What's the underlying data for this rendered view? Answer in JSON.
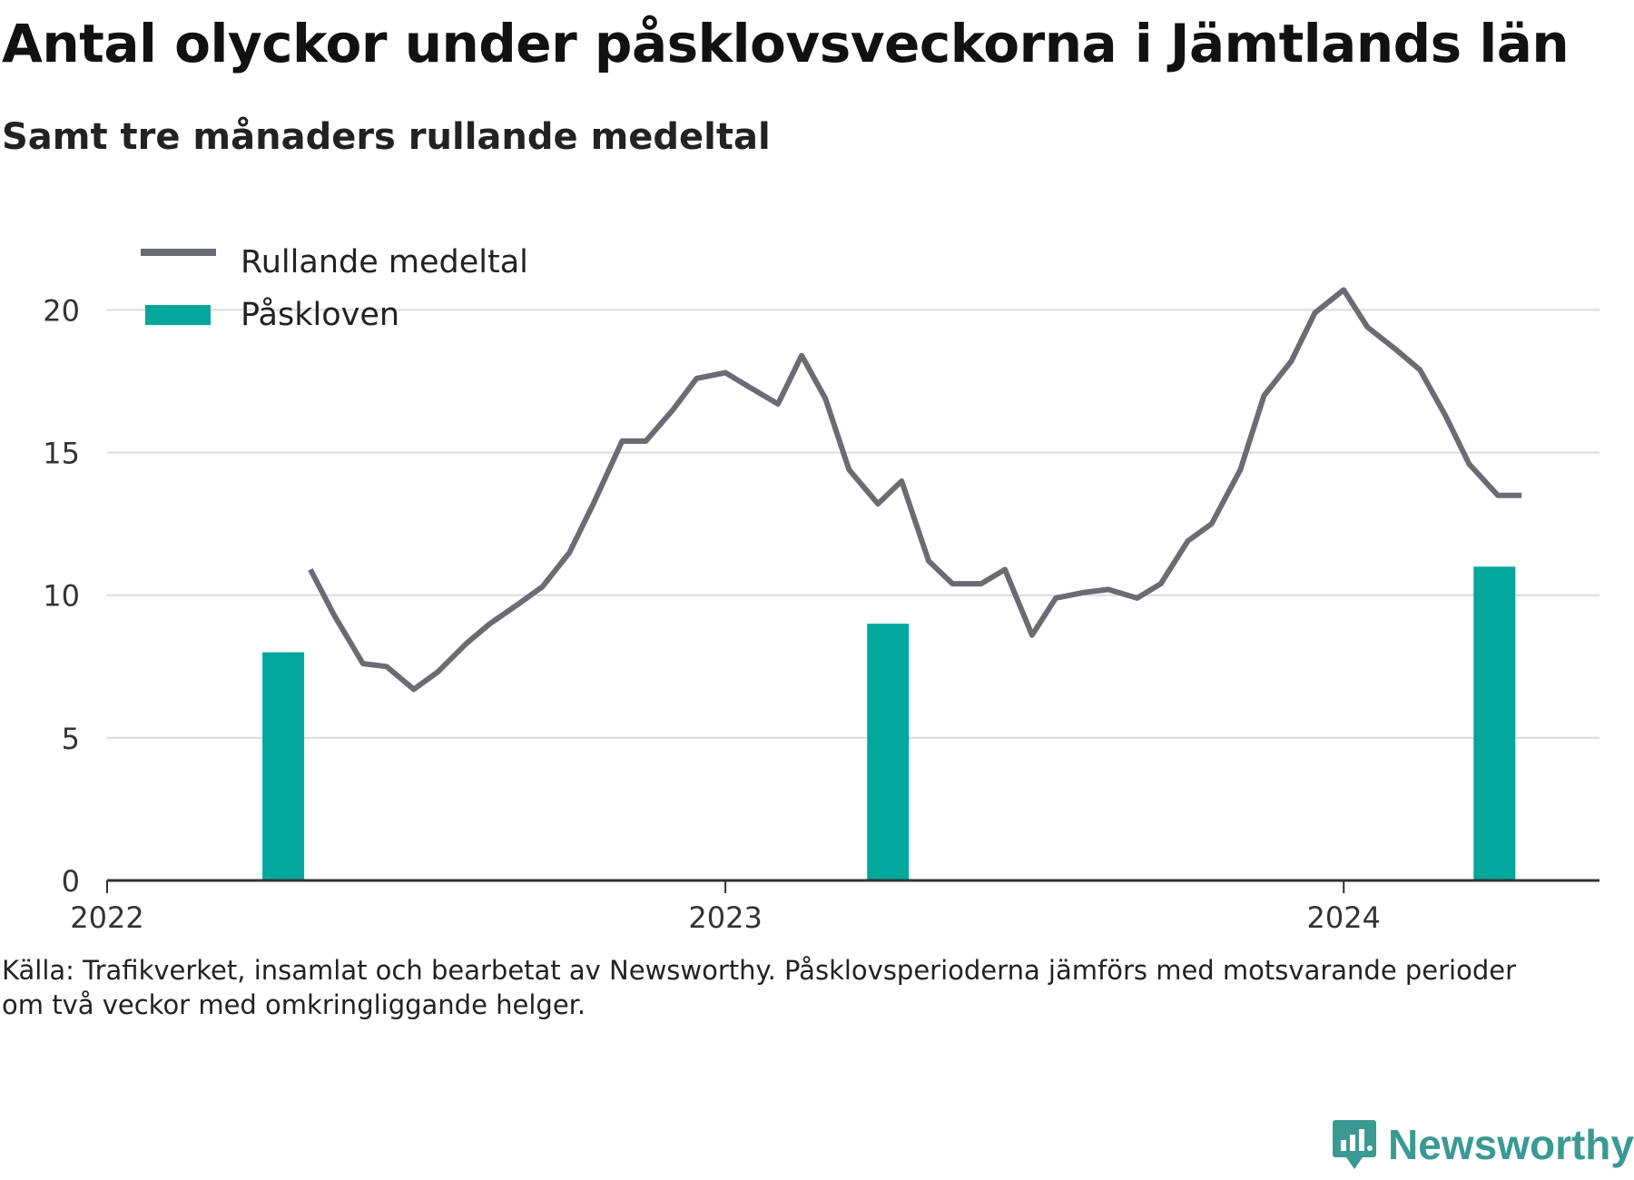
{
  "title": "Antal olyckor under påsklovsveckorna i Jämtlands län",
  "subtitle": "Samt tre månaders rullande medeltal",
  "source_line1": "Källa: Trafikverket, insamlat och bearbetat av Newsworthy. Påsklovsperioderna jämförs med motsvarande perioder",
  "source_line2": "om två veckor med omkringliggande helger.",
  "logo_text": "Newsworthy",
  "colors": {
    "line": "#6b6b72",
    "bar": "#00a79a",
    "grid": "#dcdcdc",
    "axis": "#333333"
  },
  "chart_data": {
    "type": "bar+line",
    "x_tick_labels": [
      "2022",
      "2023",
      "2024"
    ],
    "y_ticks": [
      0,
      5,
      10,
      15,
      20
    ],
    "ylim": [
      0,
      21
    ],
    "xlim": [
      "2022-01-01",
      "2024-05-31"
    ],
    "legend": {
      "placement": "top-left",
      "entries": [
        "Rullande medeltal",
        "Påskloven"
      ]
    },
    "bars": {
      "name": "Påskloven",
      "x": [
        "2022-04-15",
        "2023-04-07",
        "2024-03-30"
      ],
      "values": [
        8,
        9,
        11
      ]
    },
    "line": {
      "name": "Rullande medeltal",
      "x": [
        "2022-05-01",
        "2022-05-15",
        "2022-06-01",
        "2022-06-15",
        "2022-07-01",
        "2022-07-15",
        "2022-08-01",
        "2022-08-15",
        "2022-09-01",
        "2022-09-15",
        "2022-10-01",
        "2022-10-15",
        "2022-11-01",
        "2022-11-15",
        "2022-12-01",
        "2022-12-15",
        "2023-01-01",
        "2023-01-15",
        "2023-02-01",
        "2023-02-15",
        "2023-03-01",
        "2023-03-15",
        "2023-04-01",
        "2023-04-15",
        "2023-05-01",
        "2023-05-15",
        "2023-06-01",
        "2023-06-15",
        "2023-07-01",
        "2023-07-15",
        "2023-08-01",
        "2023-08-15",
        "2023-09-01",
        "2023-09-15",
        "2023-10-01",
        "2023-10-15",
        "2023-11-01",
        "2023-11-15",
        "2023-12-01",
        "2023-12-15",
        "2024-01-01",
        "2024-01-15",
        "2024-02-01",
        "2024-02-15",
        "2024-03-01",
        "2024-03-15",
        "2024-04-01",
        "2024-04-15"
      ],
      "values": [
        10.9,
        9.3,
        7.6,
        7.5,
        6.7,
        7.3,
        8.3,
        9.0,
        9.7,
        10.3,
        11.5,
        13.2,
        15.4,
        15.4,
        16.5,
        17.6,
        17.8,
        17.3,
        16.7,
        18.4,
        16.9,
        14.4,
        13.2,
        14.0,
        11.2,
        10.4,
        10.4,
        10.9,
        8.6,
        9.9,
        10.1,
        10.2,
        9.9,
        10.4,
        11.9,
        12.5,
        14.4,
        17.0,
        18.2,
        19.9,
        20.7,
        19.4,
        18.6,
        17.9,
        16.3,
        14.6,
        13.5,
        13.5
      ]
    }
  }
}
